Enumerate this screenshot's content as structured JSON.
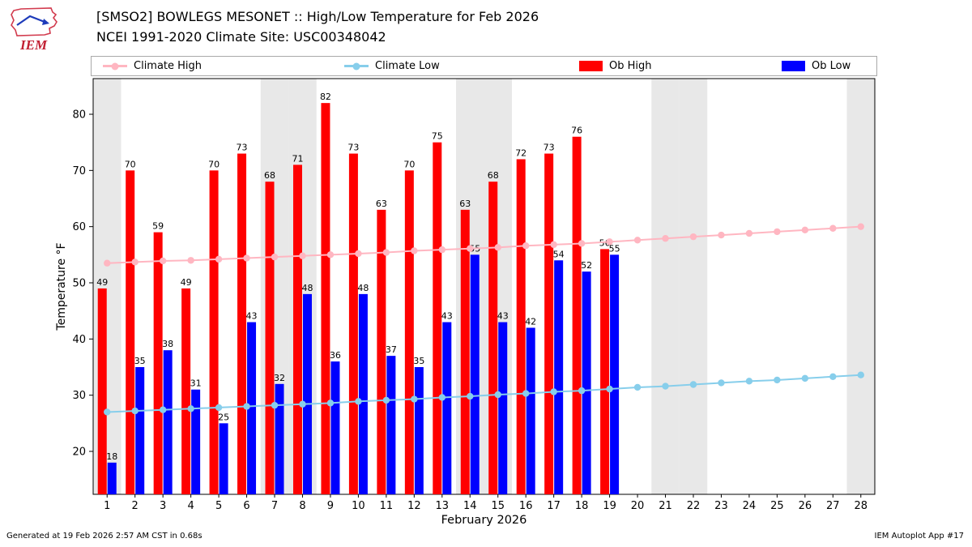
{
  "header": {
    "title_line1": "[SMSO2] BOWLEGS MESONET :: High/Low Temperature for Feb 2026",
    "title_line2": "NCEI 1991-2020 Climate Site: USC00348042",
    "logo_text": "IEM"
  },
  "legend": {
    "items": [
      {
        "label": "Climate High",
        "marker": "line-dot",
        "color": "#ffb6c1"
      },
      {
        "label": "Climate Low",
        "marker": "line-dot",
        "color": "#87ceeb"
      },
      {
        "label": "Ob High",
        "marker": "bar",
        "color": "#ff0000"
      },
      {
        "label": "Ob Low",
        "marker": "bar",
        "color": "#0000ff"
      }
    ]
  },
  "footer": {
    "left": "Generated at 19 Feb 2026 2:57 AM CST in 0.68s",
    "right": "IEM Autoplot App #17"
  },
  "chart_data": {
    "type": "bar",
    "title": "[SMSO2] BOWLEGS MESONET :: High/Low Temperature for Feb 2026",
    "subtitle": "NCEI 1991-2020 Climate Site: USC00348042",
    "xlabel": "February 2026",
    "ylabel": "Temperature °F",
    "ylim": [
      12.4,
      86.4
    ],
    "yticks": [
      20,
      30,
      40,
      50,
      60,
      70,
      80
    ],
    "grid": false,
    "legend_position": "top",
    "days": [
      1,
      2,
      3,
      4,
      5,
      6,
      7,
      8,
      9,
      10,
      11,
      12,
      13,
      14,
      15,
      16,
      17,
      18,
      19,
      20,
      21,
      22,
      23,
      24,
      25,
      26,
      27,
      28
    ],
    "weekend_shaded_days": [
      1,
      7,
      8,
      14,
      15,
      21,
      22,
      28
    ],
    "band_color": "#e8e8e8",
    "series": [
      {
        "name": "Ob High",
        "type": "bar",
        "side": "left",
        "color": "#ff0000",
        "values": [
          49,
          70,
          59,
          49,
          70,
          73,
          68,
          71,
          82,
          73,
          63,
          70,
          75,
          63,
          68,
          72,
          73,
          76,
          56,
          null,
          null,
          null,
          null,
          null,
          null,
          null,
          null,
          null
        ]
      },
      {
        "name": "Ob Low",
        "type": "bar",
        "side": "right",
        "color": "#0000ff",
        "values": [
          18,
          35,
          38,
          31,
          25,
          43,
          32,
          48,
          36,
          48,
          37,
          35,
          43,
          55,
          43,
          42,
          54,
          52,
          55,
          null,
          null,
          null,
          null,
          null,
          null,
          null,
          null,
          null
        ]
      },
      {
        "name": "Climate High",
        "type": "line",
        "color": "#ffb6c1",
        "values": [
          53.5,
          53.7,
          53.9,
          54.0,
          54.2,
          54.4,
          54.6,
          54.8,
          55.0,
          55.2,
          55.4,
          55.7,
          55.9,
          56.1,
          56.3,
          56.6,
          56.8,
          57.0,
          57.3,
          57.6,
          57.9,
          58.2,
          58.5,
          58.8,
          59.1,
          59.4,
          59.7,
          60.0
        ]
      },
      {
        "name": "Climate Low",
        "type": "line",
        "color": "#87ceeb",
        "values": [
          27.0,
          27.2,
          27.4,
          27.6,
          27.8,
          28.0,
          28.2,
          28.4,
          28.6,
          28.9,
          29.1,
          29.3,
          29.6,
          29.8,
          30.1,
          30.3,
          30.6,
          30.8,
          31.1,
          31.4,
          31.6,
          31.9,
          32.2,
          32.5,
          32.7,
          33.0,
          33.3,
          33.6
        ]
      }
    ]
  }
}
